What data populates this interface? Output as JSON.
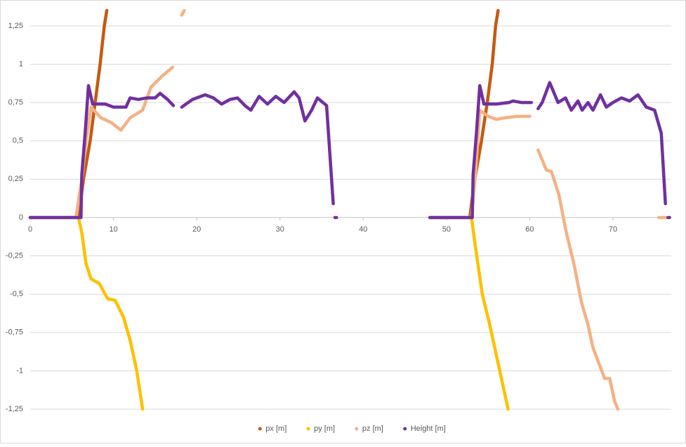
{
  "chart_data": {
    "type": "scatter",
    "xlim": [
      0,
      77
    ],
    "xticks": [
      0,
      10,
      20,
      30,
      40,
      50,
      60,
      70
    ],
    "ylim": [
      -1.3,
      1.35
    ],
    "yticks": [
      {
        "value": 1.25,
        "label": "1,25"
      },
      1,
      {
        "value": 0.75,
        "label": "0,75"
      },
      {
        "value": 0.5,
        "label": "0,5"
      },
      {
        "value": 0.25,
        "label": "0,25"
      },
      0,
      {
        "value": -0.25,
        "label": "-0,25"
      },
      {
        "value": -0.5,
        "label": "-0,5"
      },
      {
        "value": -0.75,
        "label": "-0,75"
      },
      -1,
      {
        "value": -1.25,
        "label": "-1,25"
      }
    ],
    "grid": true,
    "legend": "bottom",
    "series": [
      {
        "name": "px [m]",
        "color": "#c55a11",
        "x": [
          0,
          5.8,
          6.4,
          7.2,
          7.8,
          8.4,
          8.9,
          9.2,
          null,
          48,
          52.8,
          53.4,
          54.2,
          54.9,
          55.5,
          55.9,
          56.2
        ],
        "values": [
          0,
          0,
          0.25,
          0.5,
          0.75,
          1.0,
          1.25,
          1.35,
          null,
          0,
          0,
          0.25,
          0.5,
          0.75,
          1.0,
          1.25,
          1.35
        ]
      },
      {
        "name": "py [m]",
        "color": "#ffc000",
        "x": [
          0,
          5.8,
          6.2,
          6.7,
          7.3,
          8.3,
          9.3,
          10.2,
          11.2,
          12.0,
          12.8,
          13.5,
          null,
          48,
          53,
          53.5,
          54.3,
          55.2,
          56.0,
          56.8,
          57.4
        ],
        "values": [
          0,
          0,
          -0.1,
          -0.3,
          -0.4,
          -0.43,
          -0.53,
          -0.54,
          -0.65,
          -0.8,
          -1.0,
          -1.25,
          null,
          0,
          0,
          -0.2,
          -0.5,
          -0.7,
          -0.9,
          -1.1,
          -1.25
        ]
      },
      {
        "name": "pz [m]",
        "color": "#f4b183",
        "x": [
          0,
          5.5,
          6.2,
          6.7,
          7.3,
          8.5,
          9.7,
          10.9,
          12,
          13.5,
          14.5,
          15.8,
          17.1,
          null,
          18.2,
          18.5,
          null,
          48,
          53,
          53.5,
          54.0,
          55,
          56,
          57,
          58.5,
          60,
          null,
          61,
          62,
          62.6,
          63.5,
          64.4,
          65.3,
          66.2,
          67,
          67.6,
          68.3,
          69,
          69.6,
          70.2,
          70.6,
          null,
          75.5,
          76.5
        ],
        "values": [
          0,
          0,
          0.25,
          0.5,
          0.72,
          0.65,
          0.62,
          0.57,
          0.65,
          0.7,
          0.85,
          0.92,
          0.98,
          null,
          1.32,
          1.35,
          null,
          0,
          0,
          0.3,
          0.7,
          0.66,
          0.64,
          0.65,
          0.66,
          0.66,
          null,
          0.44,
          0.31,
          0.3,
          0.15,
          -0.1,
          -0.3,
          -0.55,
          -0.7,
          -0.85,
          -0.95,
          -1.05,
          -1.05,
          -1.2,
          -1.25,
          null,
          0,
          0
        ]
      },
      {
        "name": "Height [m]",
        "color": "#7030a0",
        "x": [
          0,
          6.1,
          6.2,
          6.6,
          7.0,
          7.5,
          9,
          10,
          11.5,
          12,
          13,
          14,
          15,
          15.6,
          16.5,
          17.2,
          null,
          18.2,
          19.5,
          21,
          22,
          23,
          24,
          24.9,
          25.8,
          26.5,
          27.5,
          28.5,
          29.5,
          30.5,
          31.7,
          32.3,
          33.0,
          33.8,
          34.5,
          35.6,
          36.4,
          null,
          36.6,
          36.8,
          null,
          48,
          53.1,
          53.2,
          53.6,
          54.0,
          54.5,
          56,
          57.5,
          58,
          59,
          60.2,
          null,
          61,
          61.5,
          62.4,
          63.4,
          64.3,
          65,
          65.8,
          66.3,
          67,
          67.6,
          68.5,
          69.2,
          70,
          71,
          72,
          73,
          74,
          75,
          75.8,
          76.3,
          null,
          76.6,
          76.8
        ],
        "values": [
          0,
          0,
          0.28,
          0.55,
          0.86,
          0.74,
          0.74,
          0.72,
          0.72,
          0.78,
          0.77,
          0.78,
          0.78,
          0.81,
          0.77,
          0.73,
          null,
          0.72,
          0.77,
          0.8,
          0.78,
          0.74,
          0.77,
          0.78,
          0.73,
          0.7,
          0.79,
          0.74,
          0.79,
          0.75,
          0.82,
          0.78,
          0.63,
          0.7,
          0.78,
          0.73,
          0.09,
          null,
          0,
          0,
          null,
          0,
          0,
          0.28,
          0.55,
          0.86,
          0.74,
          0.74,
          0.75,
          0.76,
          0.75,
          0.75,
          null,
          0.71,
          0.75,
          0.88,
          0.75,
          0.78,
          0.7,
          0.76,
          0.7,
          0.75,
          0.7,
          0.8,
          0.72,
          0.75,
          0.78,
          0.76,
          0.8,
          0.72,
          0.7,
          0.55,
          0.09,
          null,
          0,
          0
        ]
      }
    ]
  }
}
